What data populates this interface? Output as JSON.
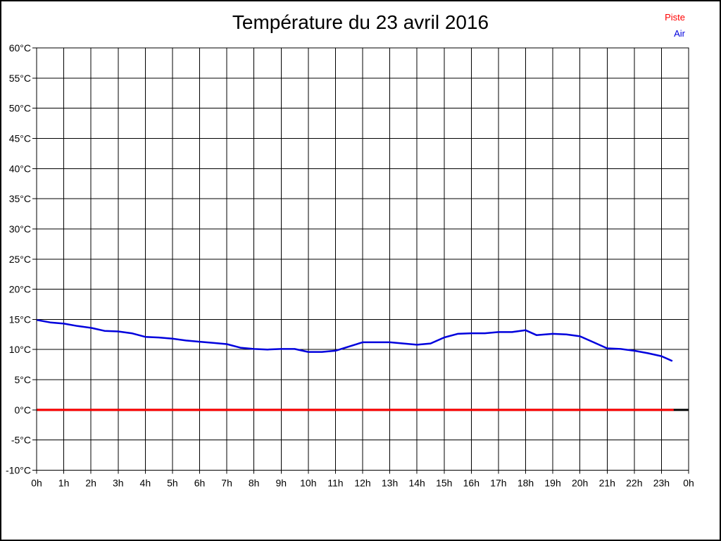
{
  "header": {
    "title": "Température du 23 avril 2016"
  },
  "legend": {
    "position": "top-right",
    "items": [
      {
        "label": "Piste",
        "color": "#ff0000"
      },
      {
        "label": "Air",
        "color": "#0000dd"
      }
    ]
  },
  "chart_data": {
    "type": "line",
    "title": "Température du 23 avril 2016",
    "xlabel": "",
    "ylabel": "",
    "xlim": [
      0,
      24
    ],
    "ylim": [
      -10,
      60
    ],
    "x_tick_step_hours": 1,
    "y_tick_step": 5,
    "grid": true,
    "grid_color": "#000000",
    "x_tick_labels": [
      "0h",
      "1h",
      "2h",
      "3h",
      "4h",
      "5h",
      "6h",
      "7h",
      "8h",
      "9h",
      "10h",
      "11h",
      "12h",
      "13h",
      "14h",
      "15h",
      "16h",
      "17h",
      "18h",
      "19h",
      "20h",
      "21h",
      "22h",
      "23h",
      "0h"
    ],
    "y_tick_labels": [
      "60°C",
      "55°C",
      "50°C",
      "45°C",
      "40°C",
      "35°C",
      "30°C",
      "25°C",
      "20°C",
      "15°C",
      "10°C",
      "5°C",
      "0°C",
      "-5°C",
      "-10°C"
    ],
    "series": [
      {
        "name": "zero-baseline",
        "color": "#000000",
        "width": 3,
        "x": [
          0,
          24
        ],
        "values": [
          0,
          0
        ]
      },
      {
        "name": "piste",
        "color": "#ff0000",
        "width": 3,
        "x": [
          0,
          23.45
        ],
        "values": [
          0,
          0
        ]
      },
      {
        "name": "air",
        "color": "#0000dd",
        "width": 2.5,
        "x": [
          0,
          0.5,
          1,
          1.5,
          2,
          2.5,
          3,
          3.5,
          4,
          4.5,
          5,
          5.5,
          6,
          6.5,
          7,
          7.5,
          8,
          8.5,
          9,
          9.5,
          10,
          10.5,
          11,
          11.5,
          12,
          12.5,
          13,
          13.5,
          14,
          14.5,
          15,
          15.5,
          16,
          16.5,
          17,
          17.5,
          18,
          18.4,
          19,
          19.5,
          20,
          20.5,
          21,
          21.5,
          22,
          22.5,
          23,
          23.4
        ],
        "values": [
          14.9,
          14.5,
          14.3,
          13.9,
          13.6,
          13.1,
          13.0,
          12.7,
          12.1,
          12.0,
          11.8,
          11.5,
          11.3,
          11.1,
          10.9,
          10.3,
          10.1,
          10.0,
          10.1,
          10.1,
          9.6,
          9.6,
          9.8,
          10.5,
          11.2,
          11.2,
          11.2,
          11.0,
          10.8,
          11.0,
          12.0,
          12.6,
          12.7,
          12.7,
          12.9,
          12.9,
          13.2,
          12.4,
          12.6,
          12.5,
          12.2,
          11.2,
          10.2,
          10.1,
          9.8,
          9.4,
          8.9,
          8.1
        ]
      }
    ]
  }
}
